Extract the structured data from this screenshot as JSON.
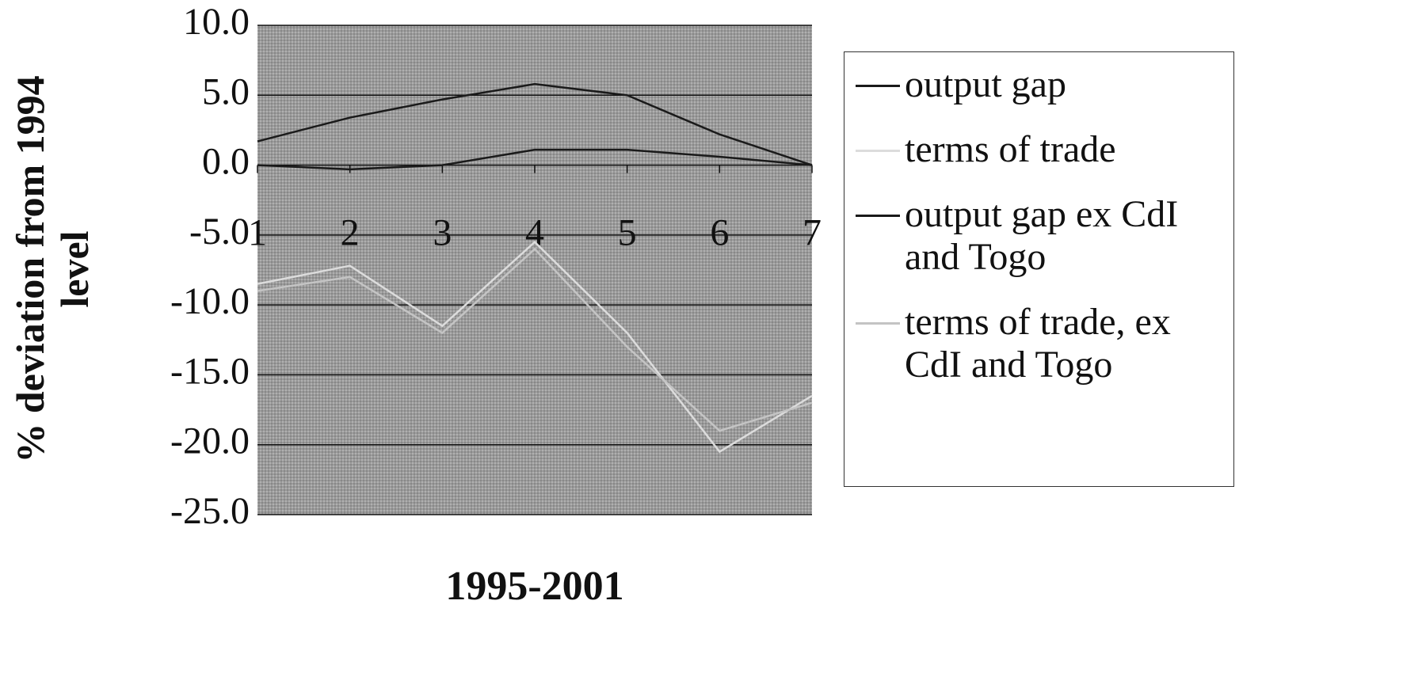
{
  "chart_data": {
    "type": "line",
    "xlabel": "1995-2001",
    "ylabel": "% deviation from 1994 level",
    "categories": [
      "1",
      "2",
      "3",
      "4",
      "5",
      "6",
      "7"
    ],
    "series": [
      {
        "name": "output gap",
        "color": "#1a1a1a",
        "values": [
          1.7,
          3.4,
          4.7,
          5.8,
          5.0,
          2.2,
          0.0
        ]
      },
      {
        "name": "terms of trade",
        "color": "#dcdcdc",
        "values": [
          -8.5,
          -7.2,
          -11.5,
          -5.5,
          -12.0,
          -20.5,
          -16.5
        ]
      },
      {
        "name": "output gap ex CdI and Togo",
        "color": "#1a1a1a",
        "values": [
          0.0,
          -0.3,
          0.0,
          1.1,
          1.1,
          0.6,
          0.0
        ]
      },
      {
        "name": "terms of trade, ex CdI and Togo",
        "color": "#c4c4c4",
        "values": [
          -9.0,
          -8.0,
          -12.0,
          -6.0,
          -13.0,
          -19.0,
          -17.0
        ]
      }
    ],
    "ylim": [
      -25,
      10
    ],
    "yticks": [
      {
        "value": -25,
        "label": "-25.0"
      },
      {
        "value": -20,
        "label": "-20.0"
      },
      {
        "value": -15,
        "label": "-15.0"
      },
      {
        "value": -10,
        "label": "-10.0"
      },
      {
        "value": -5,
        "label": "-5.0"
      },
      {
        "value": 0,
        "label": "0.0"
      },
      {
        "value": 5,
        "label": "5.0"
      },
      {
        "value": 10,
        "label": "10.0"
      }
    ],
    "grid": true
  }
}
